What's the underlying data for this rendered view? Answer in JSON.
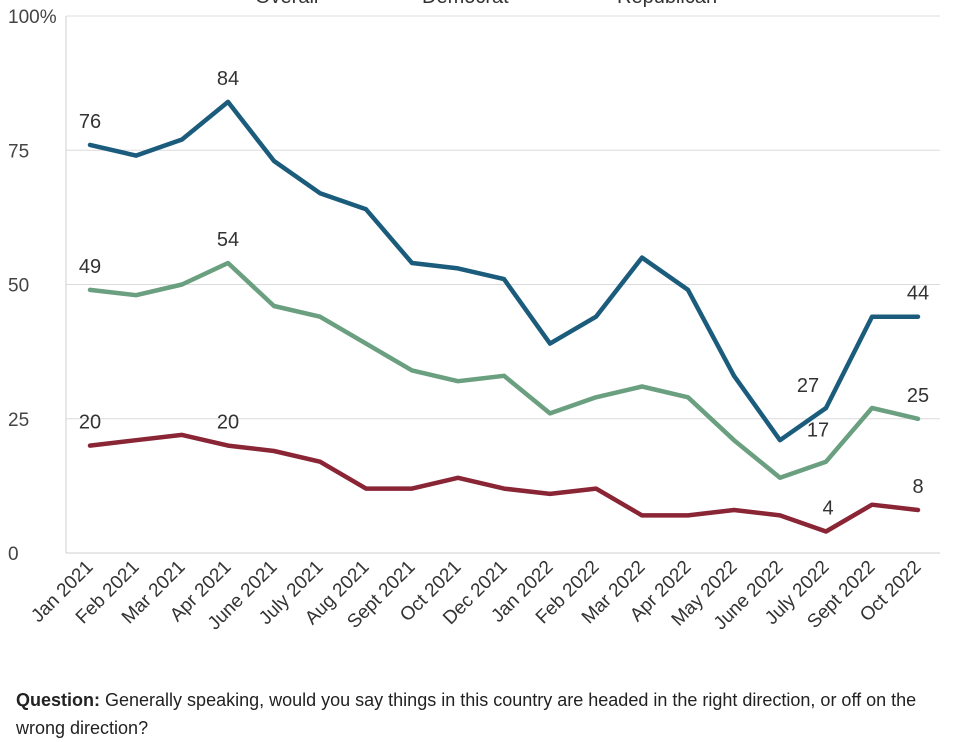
{
  "chart_data": {
    "type": "line",
    "title": "",
    "xlabel": "",
    "ylabel": "",
    "ylim": [
      0,
      100
    ],
    "yticks": [
      "0",
      "25",
      "50",
      "75",
      "100%"
    ],
    "grid": true,
    "legend_placement": "top",
    "categories": [
      "Jan 2021",
      "Feb 2021",
      "Mar 2021",
      "Apr 2021",
      "June 2021",
      "July 2021",
      "Aug 2021",
      "Sept 2021",
      "Oct 2021",
      "Dec 2021",
      "Jan 2022",
      "Feb 2022",
      "Mar 2022",
      "Apr 2022",
      "May 2022",
      "June 2022",
      "July 2022",
      "Sept 2022",
      "Oct 2022"
    ],
    "series": [
      {
        "name": "Democrat",
        "color": "#1b5c7c",
        "values": [
          76,
          74,
          77,
          84,
          73,
          67,
          64,
          54,
          53,
          51,
          39,
          44,
          55,
          49,
          33,
          21,
          27,
          44,
          44
        ],
        "labels": [
          {
            "index": 0,
            "text": "76"
          },
          {
            "index": 3,
            "text": "84"
          },
          {
            "index": 16,
            "text": "27"
          },
          {
            "index": 18,
            "text": "44"
          }
        ]
      },
      {
        "name": "Overall",
        "color": "#6a9f80",
        "values": [
          49,
          48,
          50,
          54,
          46,
          44,
          39,
          34,
          32,
          33,
          26,
          29,
          31,
          29,
          21,
          14,
          17,
          27,
          25
        ],
        "labels": [
          {
            "index": 0,
            "text": "49"
          },
          {
            "index": 3,
            "text": "54"
          },
          {
            "index": 16,
            "text": "17"
          },
          {
            "index": 18,
            "text": "25"
          }
        ]
      },
      {
        "name": "Republican",
        "color": "#8a2535",
        "values": [
          20,
          21,
          22,
          20,
          19,
          17,
          12,
          12,
          14,
          12,
          11,
          12,
          7,
          7,
          8,
          7,
          4,
          9,
          8
        ],
        "labels": [
          {
            "index": 0,
            "text": "20"
          },
          {
            "index": 3,
            "text": "20"
          },
          {
            "index": 16,
            "text": "4"
          },
          {
            "index": 18,
            "text": "8"
          }
        ]
      }
    ]
  },
  "legend": {
    "overall": "Overall",
    "democrat": "Democrat",
    "republican": "Republican"
  },
  "question": {
    "label": "Question:",
    "text": "Generally speaking, would you say things in this country are headed in the right direction, or off on the wrong direction?"
  }
}
